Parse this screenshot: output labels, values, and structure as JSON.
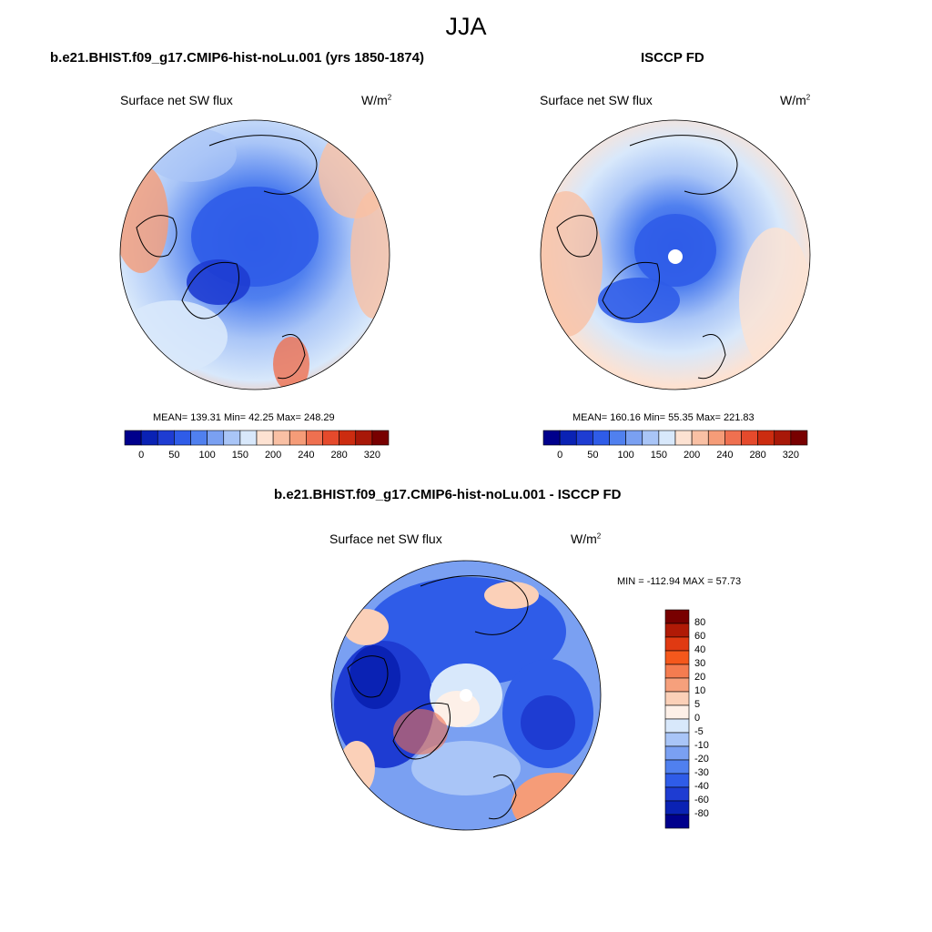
{
  "page_title": "JJA",
  "colors": {
    "land_outline": "#000000",
    "missing": "#ffffff"
  },
  "panels": [
    {
      "title": "b.e21.BHIST.f09_g17.CMIP6-hist-noLu.001 (yrs 1850-1874)",
      "variable": "Surface net SW flux",
      "units": "W/m",
      "units_sup": "2",
      "stats": {
        "mean": "139.31",
        "min": "42.25",
        "max": "248.29",
        "text": "MEAN= 139.31  Min=  42.25  Max= 248.29"
      }
    },
    {
      "title": "ISCCP FD",
      "variable": "Surface net SW flux",
      "units": "W/m",
      "units_sup": "2",
      "stats": {
        "mean": "160.16",
        "min": "55.35",
        "max": "221.83",
        "text": "MEAN= 160.16  Min=  55.35  Max= 221.83"
      }
    },
    {
      "title": "b.e21.BHIST.f09_g17.CMIP6-hist-noLu.001 - ISCCP FD",
      "variable": "Surface net SW flux",
      "units": "W/m",
      "units_sup": "2",
      "stats": {
        "min": "-112.94",
        "max": "57.73",
        "text": "MIN = -112.94 MAX =  57.73"
      }
    }
  ],
  "colorbar_abs": {
    "labels": [
      "0",
      "50",
      "100",
      "150",
      "200",
      "240",
      "280",
      "320"
    ],
    "colors": [
      "#00008c",
      "#0a22b4",
      "#1e3cd2",
      "#2f5ce8",
      "#5080ef",
      "#7aa0f2",
      "#a9c5f7",
      "#d8e8fb",
      "#fde2d2",
      "#f9c0a4",
      "#f59c78",
      "#ef7050",
      "#e54a2c",
      "#cc2c10",
      "#a81808",
      "#780000"
    ]
  },
  "colorbar_diff": {
    "labels": [
      "80",
      "60",
      "40",
      "30",
      "20",
      "10",
      "5",
      "0",
      "-5",
      "-10",
      "-20",
      "-30",
      "-40",
      "-60",
      "-80"
    ],
    "colors": [
      "#780000",
      "#b01a06",
      "#e03a12",
      "#f5581c",
      "#f47c50",
      "#f6a07c",
      "#fbd0b8",
      "#fdf0e8",
      "#d8e8fb",
      "#a9c5f7",
      "#7aa0f2",
      "#5080ef",
      "#2f5ce8",
      "#1e3cd2",
      "#0a22b4",
      "#00008c"
    ]
  }
}
